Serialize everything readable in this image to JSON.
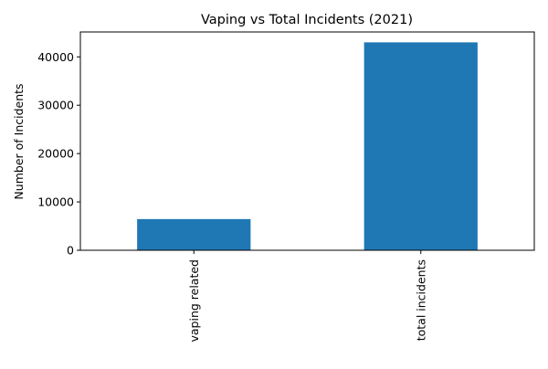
{
  "chart_data": {
    "type": "bar",
    "title": "Vaping vs Total Incidents (2021)",
    "xlabel": "",
    "ylabel": "Number of Incidents",
    "categories": [
      "vaping related",
      "total incidents"
    ],
    "values": [
      6450,
      43000
    ],
    "ylim": [
      0,
      45150
    ],
    "yticks": [
      0,
      10000,
      20000,
      30000,
      40000
    ],
    "ytick_labels": [
      "0",
      "10000",
      "20000",
      "30000",
      "40000"
    ],
    "grid": false,
    "legend": "none",
    "colors": {
      "bar": "#1f77b4",
      "axis": "#000000",
      "background": "#ffffff"
    }
  }
}
